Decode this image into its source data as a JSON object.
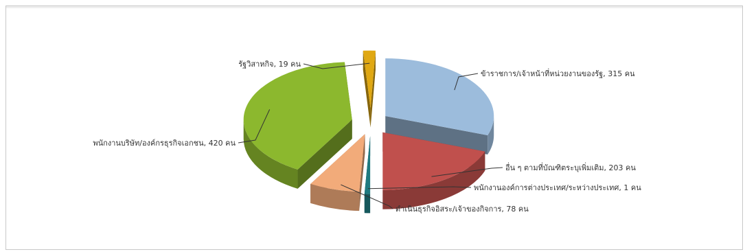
{
  "chart_data": {
    "type": "pie",
    "style": "3d-exploded",
    "slices": [
      {
        "label": "ข้าราชการ/เจ้าหน้าที่หน่วยงานของรัฐ, 315 คน",
        "category": "ข้าราชการ/เจ้าหน้าที่หน่วยงานของรัฐ",
        "value": 315,
        "color": "#9cbcdc"
      },
      {
        "label": "อื่น ๆ ตามที่บัณฑิตระบุเพิ่มเติม, 203 คน",
        "category": "อื่น ๆ ตามที่บัณฑิตระบุเพิ่มเติม",
        "value": 203,
        "color": "#c0504d"
      },
      {
        "label": "พนักงานองค์การต่างประเทศ/ระหว่างประเทศ, 1 คน",
        "category": "พนักงานองค์การต่างประเทศ/ระหว่างประเทศ",
        "value": 1,
        "color": "#1f7a80"
      },
      {
        "label": "ดำเนินธุรกิจอิสระ/เจ้าของกิจการ, 78 คน",
        "category": "ดำเนินธุรกิจอิสระ/เจ้าของกิจการ",
        "value": 78,
        "color": "#f2ab7a"
      },
      {
        "label": "พนักงานบริษัท/องค์กรธุรกิจเอกชน, 420 คน",
        "category": "พนักงานบริษัท/องค์กรธุรกิจเอกชน",
        "value": 420,
        "color": "#8cb82e"
      },
      {
        "label": "รัฐวิสาหกิจ, 19 คน",
        "category": "รัฐวิสาหกิจ",
        "value": 19,
        "color": "#e0a812"
      }
    ],
    "legend": "none"
  }
}
